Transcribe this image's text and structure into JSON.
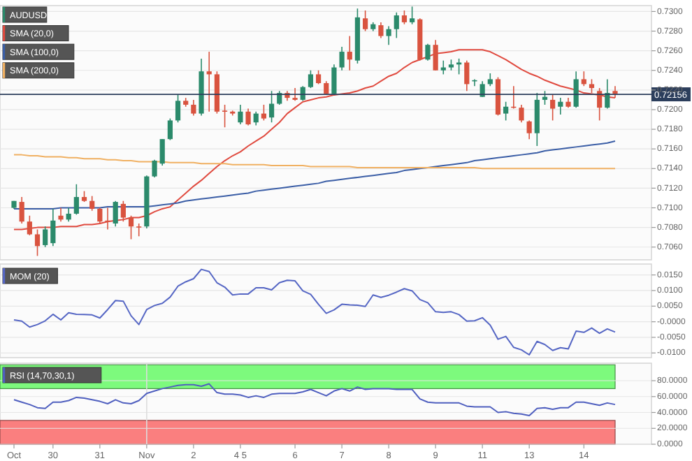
{
  "chart_data": [
    {
      "type": "candlestick",
      "legend": "top left",
      "grid": "y",
      "tick_labels": "y",
      "categories": [
        null,
        null,
        null,
        null,
        null,
        null,
        null,
        null,
        null,
        null,
        null,
        null,
        null,
        null,
        null,
        null,
        null,
        null,
        null,
        null,
        null,
        null,
        null,
        null,
        null,
        null,
        null,
        null,
        null,
        null,
        null,
        null,
        null,
        null,
        null,
        null,
        null,
        null,
        null,
        null,
        null,
        null,
        null,
        null,
        null,
        null,
        null,
        null,
        null,
        null,
        null,
        null,
        null,
        null,
        null,
        null,
        null,
        null,
        null,
        null,
        null,
        null,
        null,
        null,
        null,
        null,
        null,
        null,
        null,
        null,
        null,
        null,
        null,
        null,
        null,
        null,
        null,
        null
      ],
      "ylim": [
        0.7047,
        0.7306
      ],
      "yticks": [
        {
          "value": 0.706,
          "label": "0.7060"
        },
        {
          "value": 0.708,
          "label": "0.7080"
        },
        {
          "value": 0.71,
          "label": "0.7100"
        },
        {
          "value": 0.712,
          "label": "0.7120"
        },
        {
          "value": 0.714,
          "label": "0.7140"
        },
        {
          "value": 0.716,
          "label": "0.7160"
        },
        {
          "value": 0.718,
          "label": "0.7180"
        },
        {
          "value": 0.72,
          "label": "0.7200"
        },
        {
          "value": 0.722,
          "label": "0.7220"
        },
        {
          "value": 0.724,
          "label": "0.7240"
        },
        {
          "value": 0.726,
          "label": "0.7260"
        },
        {
          "value": 0.728,
          "label": "0.7280"
        },
        {
          "value": 0.73,
          "label": "0.7300"
        }
      ],
      "ref_lines": [
        {
          "axis": "y",
          "value": 0.72156,
          "label": "0.72156",
          "color": "#2c3e5c"
        }
      ],
      "series": [
        {
          "name": "SMA (20,0)",
          "type": "line",
          "color": "#e04a3f",
          "values": [
            0.7078,
            0.7078,
            0.7079,
            0.708,
            0.708,
            0.708,
            0.7081,
            0.7081,
            0.7081,
            0.7083,
            0.7083,
            0.7084,
            0.7086,
            0.7087,
            0.7088,
            0.709,
            0.709,
            0.7092,
            0.7096,
            0.7099,
            0.7101,
            0.7108,
            0.7115,
            0.7122,
            0.7128,
            0.7135,
            0.7142,
            0.7148,
            0.7153,
            0.7157,
            0.7163,
            0.7168,
            0.7173,
            0.718,
            0.7187,
            0.7196,
            0.7202,
            0.7208,
            0.721,
            0.7212,
            0.7213,
            0.7215,
            0.7216,
            0.7217,
            0.7219,
            0.7222,
            0.7224,
            0.7229,
            0.7234,
            0.7237,
            0.7243,
            0.7248,
            0.7251,
            0.7254,
            0.7257,
            0.7258,
            0.7259,
            0.7261,
            0.7261,
            0.7261,
            0.7261,
            0.7259,
            0.7255,
            0.7251,
            0.7246,
            0.7241,
            0.7237,
            0.7234,
            0.723,
            0.7227,
            0.7224,
            0.7222,
            0.722,
            0.7217,
            0.7216,
            0.7215,
            0.7213,
            0.7212
          ]
        },
        {
          "name": "SMA (100,0)",
          "type": "line",
          "color": "#3b5ea6",
          "values": [
            0.7099,
            0.7099,
            0.7099,
            0.7099,
            0.7099,
            0.7099,
            0.71,
            0.71,
            0.71,
            0.71,
            0.71,
            0.71,
            0.7101,
            0.7101,
            0.7101,
            0.7101,
            0.7101,
            0.7101,
            0.7102,
            0.7103,
            0.7104,
            0.7105,
            0.7107,
            0.7108,
            0.7109,
            0.711,
            0.7111,
            0.7112,
            0.7113,
            0.7114,
            0.7115,
            0.7117,
            0.7118,
            0.7119,
            0.712,
            0.7121,
            0.7122,
            0.7123,
            0.7124,
            0.7125,
            0.7127,
            0.7128,
            0.7129,
            0.713,
            0.7131,
            0.7132,
            0.7133,
            0.7134,
            0.7135,
            0.7136,
            0.7138,
            0.7139,
            0.714,
            0.7141,
            0.7142,
            0.7143,
            0.7144,
            0.7145,
            0.7146,
            0.7148,
            0.7149,
            0.715,
            0.7151,
            0.7152,
            0.7153,
            0.7154,
            0.7155,
            0.7156,
            0.7158,
            0.7159,
            0.716,
            0.7161,
            0.7162,
            0.7163,
            0.7164,
            0.7165,
            0.7166,
            0.7168
          ]
        },
        {
          "name": "SMA (200,0)",
          "type": "line",
          "color": "#f0b062",
          "values": [
            0.7154,
            0.7154,
            0.7153,
            0.7153,
            0.7152,
            0.7152,
            0.7152,
            0.7151,
            0.7151,
            0.715,
            0.715,
            0.715,
            0.7149,
            0.7149,
            0.7148,
            0.7148,
            0.7147,
            0.7147,
            0.7147,
            0.7147,
            0.7146,
            0.7146,
            0.7146,
            0.7146,
            0.7145,
            0.7145,
            0.7145,
            0.7145,
            0.7144,
            0.7144,
            0.7144,
            0.7144,
            0.7144,
            0.7143,
            0.7143,
            0.7143,
            0.7143,
            0.7143,
            0.7142,
            0.7142,
            0.7142,
            0.7142,
            0.7142,
            0.7142,
            0.7141,
            0.7141,
            0.7141,
            0.7141,
            0.7141,
            0.7141,
            0.7141,
            0.7141,
            0.7141,
            0.7141,
            0.7141,
            0.7141,
            0.7141,
            0.7141,
            0.7141,
            0.7141,
            0.714,
            0.714,
            0.714,
            0.714,
            0.714,
            0.714,
            0.714,
            0.714,
            0.714,
            0.714,
            0.714,
            0.714,
            0.714,
            0.714,
            0.714,
            0.714,
            0.714,
            0.714
          ]
        },
        {
          "name": "AUDUSD",
          "type": "candlestick",
          "color": "#2b8a6b",
          "colors": [
            "#2b8a6b",
            "#d9533f",
            "#d9533f",
            "#d9533f",
            "#2b8a6b",
            "#2b8a6b",
            "#d9533f",
            "#2b8a6b",
            "#2b8a6b",
            "#d9533f",
            "#d9533f",
            "#d9533f",
            "#d9533f",
            "#2b8a6b",
            "#d9533f",
            "#d9533f",
            "#d9533f",
            "#2b8a6b",
            "#2b8a6b",
            "#2b8a6b",
            "#2b8a6b",
            "#2b8a6b",
            "#d9533f",
            "#d9533f",
            "#2b8a6b",
            "#d9533f",
            "#d9533f",
            "#d9533f",
            "#d9533f",
            "#2b8a6b",
            "#d9533f",
            "#2b8a6b",
            "#d9533f",
            "#2b8a6b",
            "#2b8a6b",
            "#d9533f",
            "#d9533f",
            "#2b8a6b",
            "#2b8a6b",
            "#d9533f",
            "#d9533f",
            "#2b8a6b",
            "#2b8a6b",
            "#d9533f",
            "#2b8a6b",
            "#d9533f",
            "#2b8a6b",
            "#d9533f",
            "#2b8a6b",
            "#2b8a6b",
            "#d9533f",
            "#2b8a6b",
            "#d9533f",
            "#2b8a6b",
            "#d9533f",
            "#2b8a6b",
            "#2b8a6b",
            "#2b8a6b",
            "#d9533f",
            "#2b8a6b",
            "#2b8a6b",
            "#2b8a6b",
            "#d9533f",
            "#2b8a6b",
            "#d9533f",
            "#d9533f",
            "#d9533f",
            "#2b8a6b",
            "#2b8a6b",
            "#d9533f",
            "#2b8a6b",
            "#d9533f",
            "#2b8a6b",
            "#d9533f",
            "#d9533f",
            "#d9533f",
            "#2b8a6b",
            "#d9533f"
          ],
          "ohlc": [
            [
              0.71,
              0.7107,
              0.7099,
              0.7107
            ],
            [
              0.7106,
              0.7111,
              0.7084,
              0.7086
            ],
            [
              0.7086,
              0.7092,
              0.7072,
              0.7073
            ],
            [
              0.7073,
              0.7078,
              0.7051,
              0.7061
            ],
            [
              0.7062,
              0.7081,
              0.706,
              0.7078
            ],
            [
              0.7064,
              0.7099,
              0.7061,
              0.7087
            ],
            [
              0.7092,
              0.71,
              0.7086,
              0.7088
            ],
            [
              0.7088,
              0.71,
              0.7086,
              0.7094
            ],
            [
              0.7094,
              0.7124,
              0.7093,
              0.7111
            ],
            [
              0.7111,
              0.7117,
              0.7106,
              0.7107
            ],
            [
              0.7107,
              0.7112,
              0.7097,
              0.7099
            ],
            [
              0.7099,
              0.71,
              0.7084,
              0.7086
            ],
            [
              0.7087,
              0.71,
              0.7078,
              0.7086
            ],
            [
              0.7084,
              0.7107,
              0.7081,
              0.7106
            ],
            [
              0.7104,
              0.7107,
              0.7086,
              0.709
            ],
            [
              0.709,
              0.7092,
              0.7068,
              0.7081
            ],
            [
              0.7081,
              0.7084,
              0.7071,
              0.708
            ],
            [
              0.7081,
              0.7133,
              0.7079,
              0.7132
            ],
            [
              0.7132,
              0.7149,
              0.7131,
              0.7148
            ],
            [
              0.7145,
              0.717,
              0.7143,
              0.717
            ],
            [
              0.717,
              0.7191,
              0.7169,
              0.7189
            ],
            [
              0.7189,
              0.7215,
              0.7187,
              0.7209
            ],
            [
              0.7209,
              0.7212,
              0.7203,
              0.7205
            ],
            [
              0.7205,
              0.721,
              0.7194,
              0.7196
            ],
            [
              0.7196,
              0.7252,
              0.7194,
              0.7239
            ],
            [
              0.7239,
              0.7259,
              0.7198,
              0.7236
            ],
            [
              0.7236,
              0.7239,
              0.7196,
              0.7198
            ],
            [
              0.7199,
              0.7205,
              0.7182,
              0.7198
            ],
            [
              0.7198,
              0.7199,
              0.7194,
              0.7196
            ],
            [
              0.7187,
              0.7205,
              0.7185,
              0.7198
            ],
            [
              0.7198,
              0.7201,
              0.7184,
              0.7185
            ],
            [
              0.7187,
              0.7198,
              0.7184,
              0.7196
            ],
            [
              0.7196,
              0.7205,
              0.7189,
              0.7191
            ],
            [
              0.7192,
              0.7219,
              0.7187,
              0.7206
            ],
            [
              0.7206,
              0.7219,
              0.7205,
              0.7217
            ],
            [
              0.7217,
              0.7219,
              0.7209,
              0.7212
            ],
            [
              0.7212,
              0.7222,
              0.7209,
              0.721
            ],
            [
              0.721,
              0.7224,
              0.7209,
              0.7223
            ],
            [
              0.7223,
              0.724,
              0.7222,
              0.7236
            ],
            [
              0.7236,
              0.724,
              0.7226,
              0.7227
            ],
            [
              0.7227,
              0.7229,
              0.7215,
              0.7216
            ],
            [
              0.7216,
              0.7246,
              0.7215,
              0.7243
            ],
            [
              0.7243,
              0.7264,
              0.724,
              0.7259
            ],
            [
              0.7259,
              0.7275,
              0.724,
              0.7251
            ],
            [
              0.725,
              0.7303,
              0.7247,
              0.7294
            ],
            [
              0.7293,
              0.7301,
              0.728,
              0.7282
            ],
            [
              0.7282,
              0.7289,
              0.728,
              0.7287
            ],
            [
              0.7286,
              0.7289,
              0.7273,
              0.7275
            ],
            [
              0.7275,
              0.7285,
              0.7266,
              0.7282
            ],
            [
              0.7282,
              0.7299,
              0.7273,
              0.7296
            ],
            [
              0.7296,
              0.7301,
              0.7287,
              0.7289
            ],
            [
              0.7289,
              0.7305,
              0.7287,
              0.7293
            ],
            [
              0.7292,
              0.7293,
              0.725,
              0.7251
            ],
            [
              0.7251,
              0.7267,
              0.725,
              0.7266
            ],
            [
              0.7266,
              0.7271,
              0.724,
              0.724
            ],
            [
              0.724,
              0.725,
              0.7236,
              0.7243
            ],
            [
              0.7243,
              0.7251,
              0.724,
              0.7246
            ],
            [
              0.7246,
              0.7252,
              0.7236,
              0.7248
            ],
            [
              0.7248,
              0.725,
              0.7219,
              0.7226
            ],
            [
              0.7229,
              0.7231,
              0.7224,
              0.723
            ],
            [
              0.7213,
              0.7229,
              0.7213,
              0.7226
            ],
            [
              0.7226,
              0.7237,
              0.7224,
              0.7231
            ],
            [
              0.7231,
              0.7233,
              0.7194,
              0.7195
            ],
            [
              0.7196,
              0.7208,
              0.7189,
              0.7203
            ],
            [
              0.7203,
              0.7224,
              0.7201,
              0.7202
            ],
            [
              0.7202,
              0.7205,
              0.7187,
              0.7189
            ],
            [
              0.7188,
              0.7189,
              0.717,
              0.7176
            ],
            [
              0.7176,
              0.7217,
              0.7163,
              0.721
            ],
            [
              0.721,
              0.7219,
              0.7205,
              0.7213
            ],
            [
              0.721,
              0.7215,
              0.7189,
              0.7201
            ],
            [
              0.7203,
              0.7212,
              0.7195,
              0.7208
            ],
            [
              0.7208,
              0.7212,
              0.7202,
              0.7203
            ],
            [
              0.7203,
              0.7239,
              0.7202,
              0.7231
            ],
            [
              0.7231,
              0.7239,
              0.7224,
              0.7226
            ],
            [
              0.7226,
              0.7231,
              0.7217,
              0.7222
            ],
            [
              0.7219,
              0.7222,
              0.7189,
              0.7202
            ],
            [
              0.7202,
              0.7231,
              0.7201,
              0.7217
            ],
            [
              0.7219,
              0.7224,
              0.7212,
              0.7216
            ]
          ]
        }
      ]
    },
    {
      "type": "line",
      "title": "MOM (20)",
      "grid": "y",
      "tick_labels": "y",
      "categories": [
        null,
        null,
        null,
        null,
        null,
        null,
        null,
        null,
        null,
        null,
        null,
        null,
        null,
        null,
        null,
        null,
        null,
        null,
        null,
        null,
        null,
        null,
        null,
        null,
        null,
        null,
        null,
        null,
        null,
        null,
        null,
        null,
        null,
        null,
        null,
        null,
        null,
        null,
        null,
        null,
        null,
        null,
        null,
        null,
        null,
        null,
        null,
        null,
        null,
        null,
        null,
        null,
        null,
        null,
        null,
        null,
        null,
        null,
        null,
        null,
        null,
        null,
        null,
        null,
        null,
        null,
        null,
        null,
        null,
        null,
        null,
        null,
        null,
        null,
        null,
        null,
        null,
        null
      ],
      "ylim": [
        -0.0115,
        0.0185
      ],
      "yticks": [
        {
          "value": -0.01,
          "label": "-0.0100"
        },
        {
          "value": -0.005,
          "label": "-0.0050"
        },
        {
          "value": 0,
          "label": "-0.0000"
        },
        {
          "value": 0.005,
          "label": "0.0050"
        },
        {
          "value": 0.01,
          "label": "0.0100"
        },
        {
          "value": 0.015,
          "label": "0.0150"
        }
      ],
      "series": [
        {
          "color": "#5566c4",
          "values": [
            0.0006,
            0.0002,
            -0.0017,
            -0.0009,
            0.0003,
            0.0024,
            0.0006,
            0.0029,
            0.0024,
            0.0023,
            0.0022,
            0.0012,
            0.0039,
            0.0068,
            0.0066,
            0.0019,
            -0.0009,
            0.0039,
            0.0052,
            0.0059,
            0.0079,
            0.0114,
            0.0128,
            0.0138,
            0.0168,
            0.0161,
            0.0125,
            0.0111,
            0.0086,
            0.0089,
            0.0089,
            0.0109,
            0.0109,
            0.0102,
            0.0125,
            0.0133,
            0.0131,
            0.0099,
            0.0088,
            0.0056,
            0.0027,
            0.0038,
            0.0056,
            0.0054,
            0.0053,
            0.0049,
            0.0086,
            0.0078,
            0.0085,
            0.0095,
            0.0106,
            0.0099,
            0.0071,
            0.0061,
            0.0032,
            0.003,
            0.0032,
            0.0023,
            0.0002,
            0.0003,
            0.0013,
            -0.0011,
            -0.0056,
            -0.0047,
            -0.0082,
            -0.009,
            -0.0106,
            -0.0063,
            -0.0073,
            -0.0092,
            -0.0083,
            -0.0087,
            -0.003,
            -0.0034,
            -0.002,
            -0.0037,
            -0.0023,
            -0.0033
          ]
        }
      ]
    },
    {
      "type": "line",
      "title": "RSI (14,70,30,1)",
      "grid": "y",
      "categories": [
        "Oct",
        null,
        null,
        null,
        null,
        "30",
        null,
        null,
        null,
        null,
        null,
        "31",
        null,
        null,
        null,
        null,
        null,
        "Nov",
        null,
        null,
        null,
        null,
        null,
        "2",
        null,
        null,
        null,
        null,
        null,
        "4 5",
        null,
        null,
        null,
        null,
        null,
        null,
        "6",
        null,
        null,
        null,
        null,
        null,
        "7",
        null,
        null,
        null,
        null,
        null,
        "8",
        null,
        null,
        null,
        null,
        null,
        "9",
        null,
        null,
        null,
        null,
        null,
        "11",
        null,
        null,
        null,
        null,
        null,
        "13",
        null,
        null,
        null,
        null,
        null,
        null,
        "14",
        null,
        null,
        null,
        null
      ],
      "ylim": [
        0,
        102
      ],
      "yticks": [
        {
          "value": 0,
          "label": "0.0000"
        },
        {
          "value": 20,
          "label": "20.0000"
        },
        {
          "value": 40,
          "label": "40.0000"
        },
        {
          "value": 60,
          "label": "60.0000"
        },
        {
          "value": 80,
          "label": "80.0000"
        }
      ],
      "bands": [
        {
          "axis": "y",
          "from": 70,
          "to": 100,
          "color": "#7dfa7d"
        },
        {
          "axis": "y",
          "from": 0,
          "to": 30,
          "color": "#fa7f7f"
        }
      ],
      "ref_lines": [
        {
          "axis": "x",
          "value": "Nov",
          "color": "#dddddd"
        }
      ],
      "series": [
        {
          "color": "#4f5fbf",
          "values": [
            56,
            53,
            50,
            46,
            45,
            53,
            53,
            55,
            59,
            58,
            56,
            54,
            51,
            56,
            52,
            51,
            55,
            64,
            67,
            70,
            72,
            74,
            75,
            75,
            73,
            76,
            65,
            63,
            63,
            62,
            59,
            61,
            59,
            63,
            64,
            64,
            64,
            66,
            69,
            65,
            61,
            67,
            70,
            67,
            72,
            69,
            70,
            70,
            70,
            69,
            69,
            69,
            57,
            53,
            52,
            52,
            52,
            52,
            48,
            47,
            47,
            47,
            40,
            41,
            39,
            38,
            36,
            45,
            46,
            44,
            46,
            46,
            53,
            53,
            51,
            49,
            52,
            50
          ]
        }
      ]
    }
  ]
}
